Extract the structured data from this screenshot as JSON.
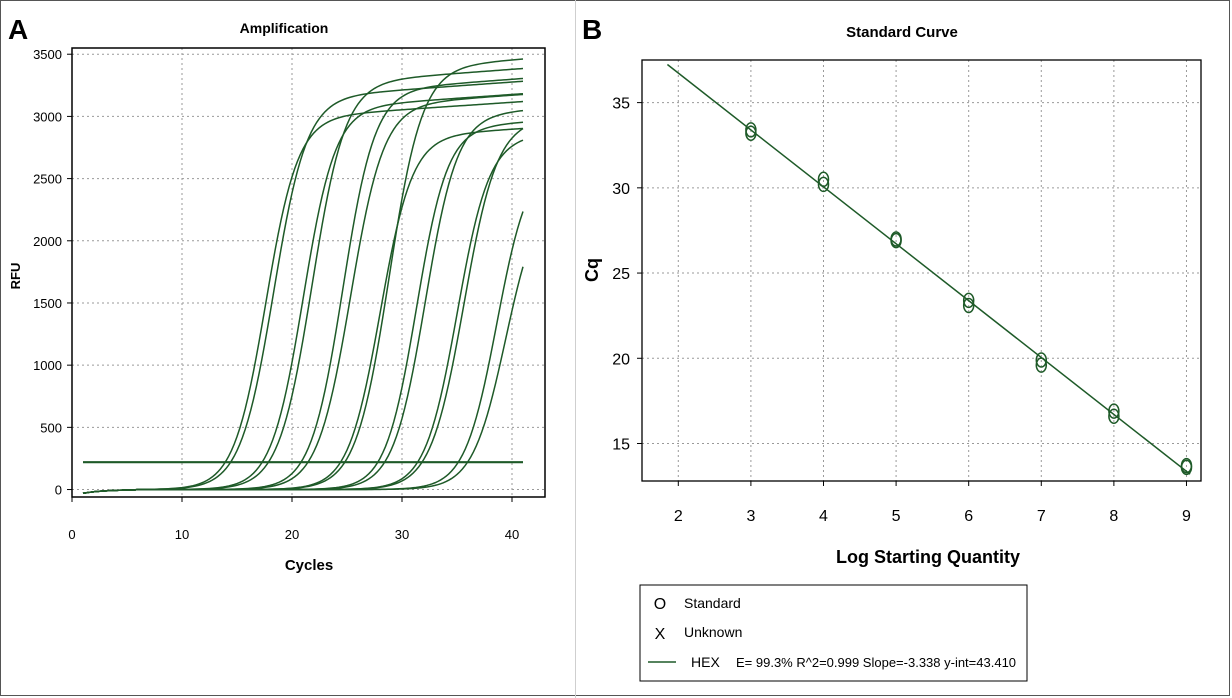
{
  "panels": {
    "a_letter": "A",
    "b_letter": "B"
  },
  "colors": {
    "line": "#1e5a28",
    "axis": "#000000",
    "grid": "#9a9a9a"
  },
  "chart_data": [
    {
      "id": "amplification",
      "type": "line",
      "title": "Amplification",
      "xlabel": "Cycles",
      "ylabel": "RFU",
      "xlim": [
        0,
        43
      ],
      "ylim": [
        -60,
        3550
      ],
      "xticks": [
        0,
        10,
        20,
        30,
        40
      ],
      "yticks": [
        0,
        500,
        1000,
        1500,
        2000,
        2500,
        3000,
        3500
      ],
      "grid": true,
      "threshold": 220,
      "x_range": [
        1,
        41
      ],
      "series": [
        {
          "name": "curve-1",
          "plateau": 2980,
          "midpoint": 17.6,
          "slope": 1.45
        },
        {
          "name": "curve-2",
          "plateau": 3140,
          "midpoint": 18.3,
          "slope": 1.5
        },
        {
          "name": "curve-3",
          "plateau": 3060,
          "midpoint": 21.0,
          "slope": 1.45
        },
        {
          "name": "curve-4",
          "plateau": 3260,
          "midpoint": 21.8,
          "slope": 1.5
        },
        {
          "name": "curve-5",
          "plateau": 3200,
          "midpoint": 24.6,
          "slope": 1.45
        },
        {
          "name": "curve-6",
          "plateau": 3080,
          "midpoint": 25.3,
          "slope": 1.5
        },
        {
          "name": "curve-7",
          "plateau": 2830,
          "midpoint": 28.0,
          "slope": 1.45
        },
        {
          "name": "curve-8",
          "plateau": 3380,
          "midpoint": 28.8,
          "slope": 1.5
        },
        {
          "name": "curve-9",
          "plateau": 2900,
          "midpoint": 31.3,
          "slope": 1.4
        },
        {
          "name": "curve-10",
          "plateau": 3000,
          "midpoint": 32.1,
          "slope": 1.45
        },
        {
          "name": "curve-11",
          "plateau": 2820,
          "midpoint": 35.0,
          "slope": 1.45
        },
        {
          "name": "curve-12",
          "plateau": 2950,
          "midpoint": 35.6,
          "slope": 1.5
        },
        {
          "name": "curve-13",
          "plateau": 2650,
          "midpoint": 38.6,
          "slope": 1.45
        },
        {
          "name": "curve-14",
          "plateau": 2400,
          "midpoint": 39.4,
          "slope": 1.5
        }
      ]
    },
    {
      "id": "standard-curve",
      "type": "scatter",
      "title": "Standard Curve",
      "xlabel": "Log Starting Quantity",
      "ylabel": "Cq",
      "xlim": [
        1.5,
        9.2
      ],
      "ylim": [
        12.8,
        37.5
      ],
      "xticks": [
        2,
        3,
        4,
        5,
        6,
        7,
        8,
        9
      ],
      "yticks": [
        15,
        20,
        25,
        30,
        35
      ],
      "grid": true,
      "points": [
        {
          "x": 3,
          "y": 33.4
        },
        {
          "x": 3,
          "y": 33.2
        },
        {
          "x": 4,
          "y": 30.5
        },
        {
          "x": 4,
          "y": 30.2
        },
        {
          "x": 5,
          "y": 27.0
        },
        {
          "x": 5,
          "y": 26.9
        },
        {
          "x": 6,
          "y": 23.4
        },
        {
          "x": 6,
          "y": 23.1
        },
        {
          "x": 7,
          "y": 19.9
        },
        {
          "x": 7,
          "y": 19.6
        },
        {
          "x": 8,
          "y": 16.9
        },
        {
          "x": 8,
          "y": 16.6
        },
        {
          "x": 9,
          "y": 13.7
        },
        {
          "x": 9,
          "y": 13.6
        }
      ],
      "fit": {
        "slope": -3.338,
        "intercept": 43.41,
        "x_from": 1.85,
        "x_to": 9.05
      },
      "legend": {
        "standard_symbol": "O",
        "standard_label": "Standard",
        "unknown_symbol": "X",
        "unknown_label": "Unknown",
        "fit_label": "HEX",
        "fit_stats": "E= 99.3% R^2=0.999 Slope=-3.338 y-int=43.410"
      }
    }
  ]
}
